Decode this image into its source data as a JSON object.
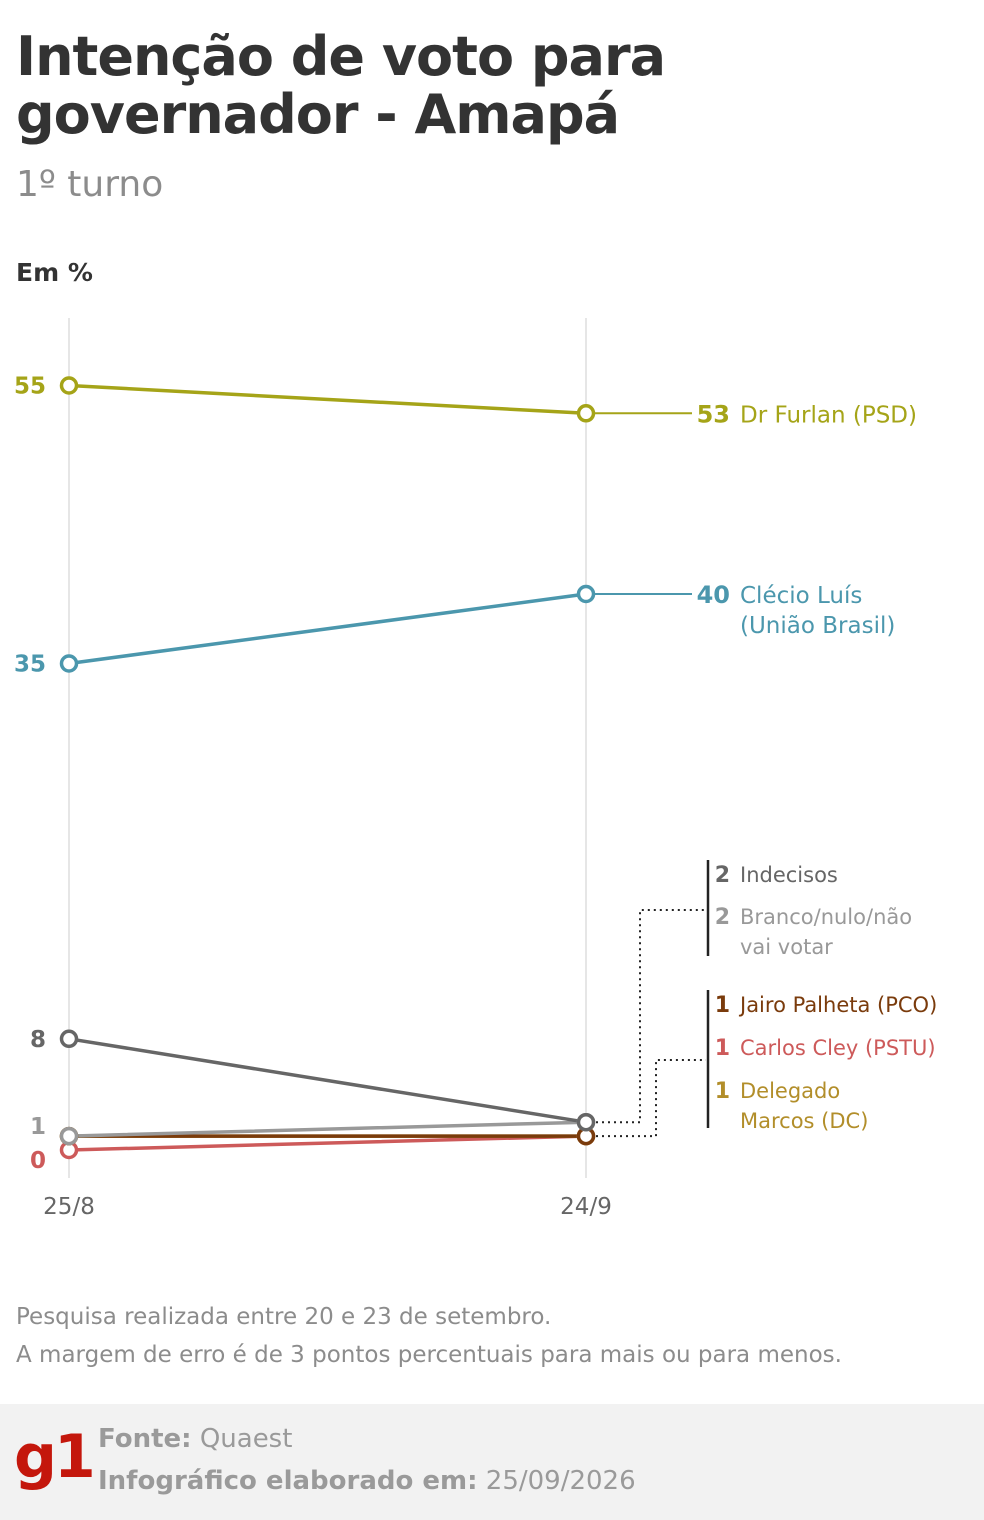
{
  "header": {
    "title": "Intenção de voto para governador - Amapá",
    "subtitle": "1º turno",
    "unit": "Em %"
  },
  "chart_data": {
    "type": "line",
    "x": [
      "25/8",
      "24/9"
    ],
    "ylim": [
      0,
      60
    ],
    "series": [
      {
        "name": "Dr Furlan (PSD)",
        "values": [
          55,
          53
        ],
        "color": "#a5a418",
        "start_label": "55",
        "end_label": "53",
        "label_lines": [
          "Dr Furlan (PSD)"
        ]
      },
      {
        "name": "Clécio Luís (União Brasil)",
        "values": [
          35,
          40
        ],
        "color": "#4b97ad",
        "start_label": "35",
        "end_label": "40",
        "label_lines": [
          "Clécio Luís",
          "(União Brasil)"
        ]
      },
      {
        "name": "Indecisos",
        "values": [
          8,
          2
        ],
        "color": "#666666",
        "start_label": "8",
        "end_label": "2",
        "label_lines": [
          "Indecisos"
        ]
      },
      {
        "name": "Branco/nulo/não vai votar",
        "values": [
          1,
          2
        ],
        "color": "#999999",
        "start_label": "1",
        "end_label": "2",
        "label_lines": [
          "Branco/nulo/não",
          "vai votar"
        ]
      },
      {
        "name": "Jairo Palheta (PCO)",
        "values": [
          1,
          1
        ],
        "color": "#7a3b0c",
        "start_label": "",
        "end_label": "1",
        "label_lines": [
          "Jairo Palheta (PCO)"
        ]
      },
      {
        "name": "Carlos Cley (PSTU)",
        "values": [
          0,
          1
        ],
        "color": "#cd5a5a",
        "start_label": "0",
        "end_label": "1",
        "label_lines": [
          "Carlos Cley (PSTU)"
        ]
      },
      {
        "name": "Delegado Marcos (DC)",
        "values": [
          1,
          1
        ],
        "color": "#b28e2a",
        "start_label": "",
        "end_label": "1",
        "label_lines": [
          "Delegado",
          "Marcos (DC)"
        ]
      }
    ],
    "grid": "vertical lines at each date"
  },
  "notes": {
    "line1": "Pesquisa realizada entre 20 e 23 de setembro.",
    "line2": "A margem de erro é de 3 pontos percentuais para mais ou para menos."
  },
  "footer": {
    "logo": "g1",
    "source_label": "Fonte:",
    "source": "Quaest",
    "made_label": "Infográfico elaborado em:",
    "made_date": "25/09/2026"
  }
}
